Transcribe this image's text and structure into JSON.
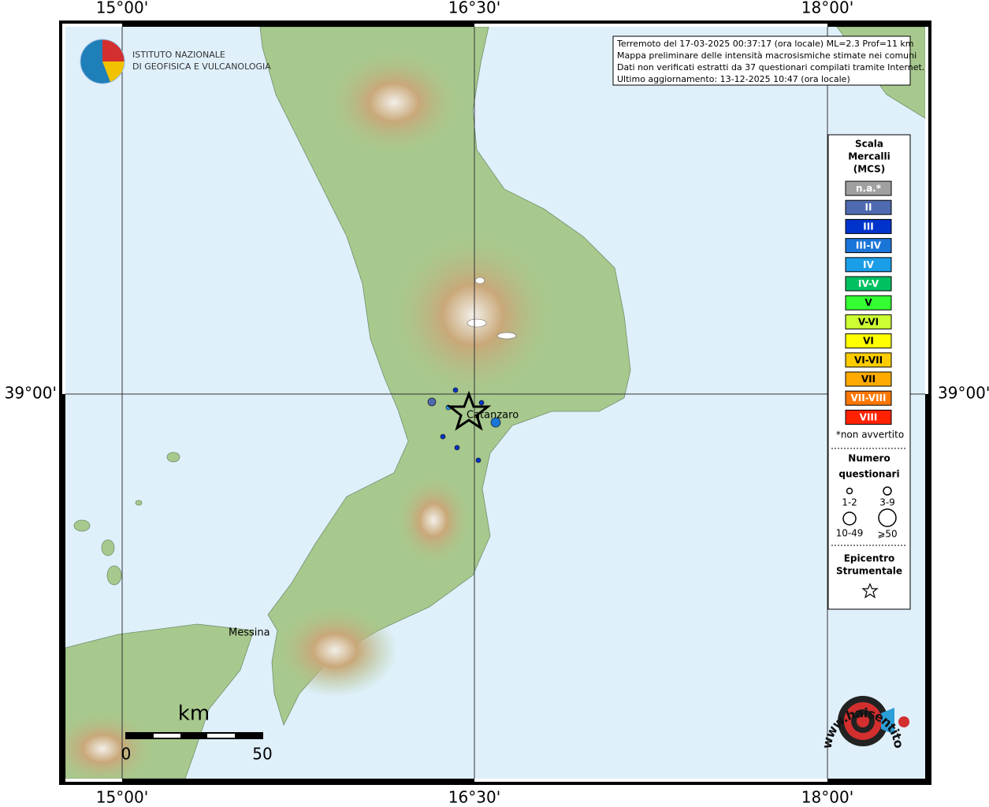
{
  "logo": {
    "line1": "ISTITUTO NAZIONALE",
    "line2": "DI GEOFISICA E VULCANOLOGIA"
  },
  "info": [
    "Terremoto del 17-03-2025 00:37:17 (ora locale) ML=2.3 Prof=11 km",
    "Mappa preliminare delle intensità macrosismiche stimate nei comuni",
    "Dati non verificati estratti da 37 questionari compilati tramite Internet.",
    "Ultimo aggiornamento: 13-12-2025 10:47 (ora locale)"
  ],
  "graticule": {
    "longitudes": [
      "15°00'",
      "16°30'",
      "18°00'"
    ],
    "latitude": "39°00'"
  },
  "places": {
    "catanzaro": "Catanzaro",
    "messina": "Messina"
  },
  "scale_bar": {
    "unit": "km",
    "start": 0,
    "end": 50
  },
  "legend": {
    "title": [
      "Scala",
      "Mercalli",
      "(MCS)"
    ],
    "classes": [
      {
        "label": "n.a.*",
        "color": "#a0a0a0"
      },
      {
        "label": "II",
        "color": "#4f6ab0"
      },
      {
        "label": "III",
        "color": "#0033cc"
      },
      {
        "label": "III-IV",
        "color": "#1a75d9"
      },
      {
        "label": "IV",
        "color": "#1a9ee8"
      },
      {
        "label": "IV-V",
        "color": "#00c060"
      },
      {
        "label": "V",
        "color": "#33ff33"
      },
      {
        "label": "V-VI",
        "color": "#ccff33"
      },
      {
        "label": "VI",
        "color": "#ffff00"
      },
      {
        "label": "VI-VII",
        "color": "#ffcc00"
      },
      {
        "label": "VII",
        "color": "#ffaa00"
      },
      {
        "label": "VII-VIII",
        "color": "#ff7700"
      },
      {
        "label": "VIII",
        "color": "#ff2200"
      }
    ],
    "note": "*non avvertito",
    "count_title": [
      "Numero",
      "questionari"
    ],
    "counts": [
      "1-2",
      "3-9",
      "10-49",
      "⩾50"
    ],
    "epicenter_title": [
      "Epicentro",
      "Strumentale"
    ]
  },
  "watermark": {
    "url": "www.haisentitoilterremoto.it"
  }
}
